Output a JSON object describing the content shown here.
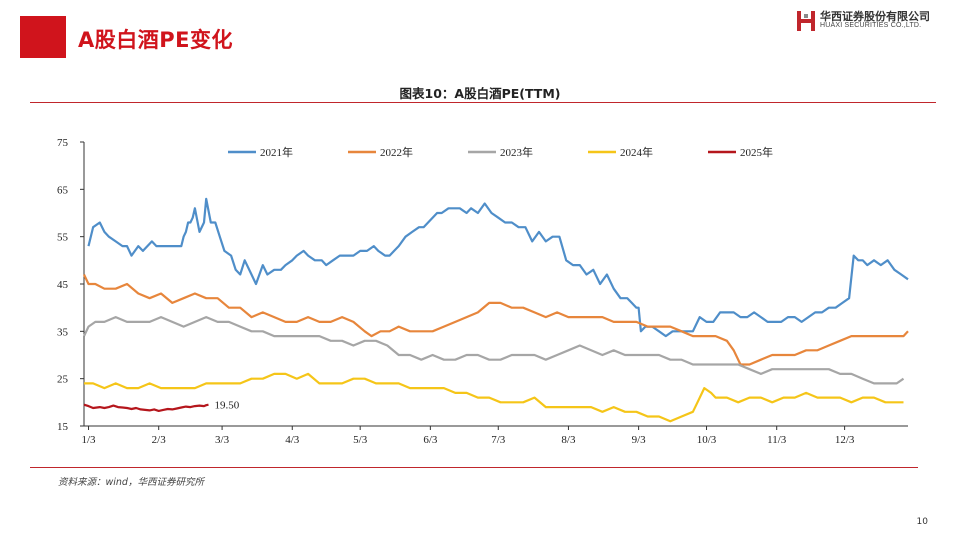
{
  "slide": {
    "title": "A股白酒PE变化",
    "page_number": "10",
    "accent_color": "#d0141c"
  },
  "logo": {
    "cn": "华西证券股份有限公司",
    "en": "HUAXI SECURITIES CO.,LTD."
  },
  "source_note": "资料来源：wind，华西证券研究所",
  "chart_data": {
    "type": "line",
    "title": "图表10：A股白酒PE(TTM)",
    "xlabel": "",
    "ylabel": "",
    "ylim": [
      15,
      75
    ],
    "yticks": [
      15,
      25,
      35,
      45,
      55,
      65,
      75
    ],
    "xlim": [
      1,
      365
    ],
    "x_unit": "day of year (month/day tick labels)",
    "xtick_labels": [
      "1/3",
      "2/3",
      "3/3",
      "4/3",
      "5/3",
      "6/3",
      "7/3",
      "8/3",
      "9/3",
      "10/3",
      "11/3",
      "12/3"
    ],
    "xtick_positions": [
      3,
      34,
      62,
      93,
      123,
      154,
      184,
      215,
      246,
      276,
      307,
      337
    ],
    "legend_position": "top",
    "grid": false,
    "annotation": {
      "text": "19.50",
      "x": 56,
      "y": 19.5
    },
    "series": [
      {
        "name": "2021年",
        "color": "#4f8ec9",
        "x": [
          3,
          5,
          8,
          10,
          12,
          15,
          18,
          20,
          22,
          25,
          27,
          29,
          31,
          33,
          35,
          37,
          38,
          40,
          42,
          44,
          45,
          46,
          47,
          48,
          49,
          50,
          52,
          54,
          55,
          57,
          59,
          61,
          63,
          66,
          68,
          70,
          72,
          75,
          77,
          80,
          82,
          85,
          88,
          90,
          93,
          95,
          98,
          100,
          103,
          106,
          108,
          111,
          114,
          117,
          120,
          123,
          126,
          129,
          131,
          134,
          136,
          138,
          140,
          143,
          146,
          149,
          151,
          153,
          155,
          157,
          159,
          162,
          165,
          167,
          170,
          172,
          175,
          178,
          181,
          184,
          187,
          190,
          193,
          196,
          199,
          202,
          205,
          208,
          211,
          214,
          217,
          220,
          223,
          226,
          229,
          232,
          235,
          238,
          241,
          243,
          245,
          246,
          247,
          249,
          252,
          255,
          258,
          261,
          264,
          267,
          270,
          273,
          276,
          279,
          282,
          285,
          288,
          291,
          294,
          297,
          300,
          303,
          306,
          309,
          312,
          315,
          318,
          321,
          324,
          327,
          330,
          333,
          336,
          339,
          341,
          343,
          345,
          347,
          350,
          353,
          356,
          359,
          362,
          365
        ],
        "y": [
          53,
          57,
          58,
          56,
          55,
          54,
          53,
          53,
          51,
          53,
          52,
          53,
          54,
          53,
          53,
          53,
          53,
          53,
          53,
          53,
          55,
          56,
          58,
          58,
          59,
          61,
          56,
          58,
          63,
          58,
          58,
          55,
          52,
          51,
          48,
          47,
          50,
          47,
          45,
          49,
          47,
          48,
          48,
          49,
          50,
          51,
          52,
          51,
          50,
          50,
          49,
          50,
          51,
          51,
          51,
          52,
          52,
          53,
          52,
          51,
          51,
          52,
          53,
          55,
          56,
          57,
          57,
          58,
          59,
          60,
          60,
          61,
          61,
          61,
          60,
          61,
          60,
          62,
          60,
          59,
          58,
          58,
          57,
          57,
          54,
          56,
          54,
          55,
          55,
          50,
          49,
          49,
          47,
          48,
          45,
          47,
          44,
          42,
          42,
          41,
          40,
          40,
          35,
          36,
          36,
          35,
          34,
          35,
          35,
          35,
          35,
          38,
          37,
          37,
          39,
          39,
          39,
          38,
          38,
          39,
          38,
          37,
          37,
          37,
          38,
          38,
          37,
          38,
          39,
          39,
          40,
          40,
          41,
          42,
          51,
          50,
          50,
          49,
          50,
          49,
          50,
          48,
          47,
          46
        ]
      },
      {
        "name": "2022年",
        "color": "#e7863c",
        "x": [
          1,
          3,
          6,
          10,
          15,
          20,
          25,
          30,
          35,
          40,
          45,
          50,
          55,
          60,
          65,
          70,
          75,
          80,
          85,
          90,
          95,
          100,
          105,
          110,
          115,
          120,
          125,
          128,
          132,
          136,
          140,
          145,
          150,
          155,
          160,
          165,
          170,
          175,
          180,
          185,
          190,
          195,
          200,
          205,
          210,
          215,
          220,
          225,
          230,
          235,
          240,
          245,
          250,
          255,
          260,
          265,
          270,
          275,
          280,
          285,
          288,
          291,
          295,
          300,
          305,
          310,
          315,
          320,
          325,
          330,
          335,
          340,
          345,
          350,
          355,
          360,
          363,
          365
        ],
        "y": [
          47,
          45,
          45,
          44,
          44,
          45,
          43,
          42,
          43,
          41,
          42,
          43,
          42,
          42,
          40,
          40,
          38,
          39,
          38,
          37,
          37,
          38,
          37,
          37,
          38,
          37,
          35,
          34,
          35,
          35,
          36,
          35,
          35,
          35,
          36,
          37,
          38,
          39,
          41,
          41,
          40,
          40,
          39,
          38,
          39,
          38,
          38,
          38,
          38,
          37,
          37,
          37,
          36,
          36,
          36,
          35,
          34,
          34,
          34,
          33,
          31,
          28,
          28,
          29,
          30,
          30,
          30,
          31,
          31,
          32,
          33,
          34,
          34,
          34,
          34,
          34,
          34,
          35
        ]
      },
      {
        "name": "2023年",
        "color": "#a6a6a6",
        "x": [
          1,
          3,
          6,
          10,
          15,
          20,
          25,
          30,
          35,
          40,
          45,
          50,
          55,
          60,
          65,
          70,
          75,
          80,
          85,
          90,
          95,
          100,
          105,
          110,
          115,
          120,
          125,
          130,
          135,
          140,
          145,
          150,
          155,
          160,
          165,
          170,
          175,
          180,
          185,
          190,
          195,
          200,
          205,
          210,
          215,
          220,
          225,
          230,
          235,
          240,
          245,
          250,
          255,
          260,
          265,
          270,
          275,
          280,
          285,
          290,
          295,
          300,
          305,
          310,
          315,
          320,
          325,
          330,
          335,
          340,
          345,
          350,
          355,
          360,
          363
        ],
        "y": [
          34,
          36,
          37,
          37,
          38,
          37,
          37,
          37,
          38,
          37,
          36,
          37,
          38,
          37,
          37,
          36,
          35,
          35,
          34,
          34,
          34,
          34,
          34,
          33,
          33,
          32,
          33,
          33,
          32,
          30,
          30,
          29,
          30,
          29,
          29,
          30,
          30,
          29,
          29,
          30,
          30,
          30,
          29,
          30,
          31,
          32,
          31,
          30,
          31,
          30,
          30,
          30,
          30,
          29,
          29,
          28,
          28,
          28,
          28,
          28,
          27,
          26,
          27,
          27,
          27,
          27,
          27,
          27,
          26,
          26,
          25,
          24,
          24,
          24,
          25
        ]
      },
      {
        "name": "2024年",
        "color": "#f5c518",
        "x": [
          1,
          5,
          10,
          15,
          20,
          25,
          30,
          35,
          40,
          45,
          50,
          55,
          60,
          65,
          70,
          75,
          80,
          85,
          90,
          95,
          100,
          105,
          110,
          115,
          120,
          125,
          130,
          135,
          140,
          145,
          150,
          155,
          160,
          165,
          170,
          175,
          180,
          185,
          190,
          195,
          200,
          205,
          210,
          215,
          220,
          225,
          230,
          235,
          240,
          245,
          250,
          255,
          260,
          265,
          270,
          272,
          275,
          278,
          280,
          285,
          290,
          295,
          300,
          305,
          310,
          315,
          320,
          325,
          330,
          335,
          340,
          345,
          350,
          355,
          360,
          363
        ],
        "y": [
          24,
          24,
          23,
          24,
          23,
          23,
          24,
          23,
          23,
          23,
          23,
          24,
          24,
          24,
          24,
          25,
          25,
          26,
          26,
          25,
          26,
          24,
          24,
          24,
          25,
          25,
          24,
          24,
          24,
          23,
          23,
          23,
          23,
          22,
          22,
          21,
          21,
          20,
          20,
          20,
          21,
          19,
          19,
          19,
          19,
          19,
          18,
          19,
          18,
          18,
          17,
          17,
          16,
          17,
          18,
          20,
          23,
          22,
          21,
          21,
          20,
          21,
          21,
          20,
          21,
          21,
          22,
          21,
          21,
          21,
          20,
          21,
          21,
          20,
          20,
          20
        ]
      },
      {
        "name": "2025年",
        "color": "#b5161c",
        "x": [
          1,
          3,
          5,
          8,
          10,
          12,
          14,
          16,
          18,
          20,
          22,
          24,
          26,
          28,
          30,
          32,
          34,
          36,
          38,
          40,
          42,
          44,
          46,
          48,
          50,
          52,
          54,
          55,
          56
        ],
        "y": [
          19.5,
          19.2,
          18.8,
          19,
          18.8,
          19,
          19.3,
          19,
          18.9,
          18.8,
          18.6,
          18.8,
          18.5,
          18.4,
          18.3,
          18.5,
          18.2,
          18.4,
          18.6,
          18.5,
          18.7,
          18.9,
          19.1,
          19,
          19.2,
          19.3,
          19.2,
          19.4,
          19.5
        ]
      }
    ]
  }
}
